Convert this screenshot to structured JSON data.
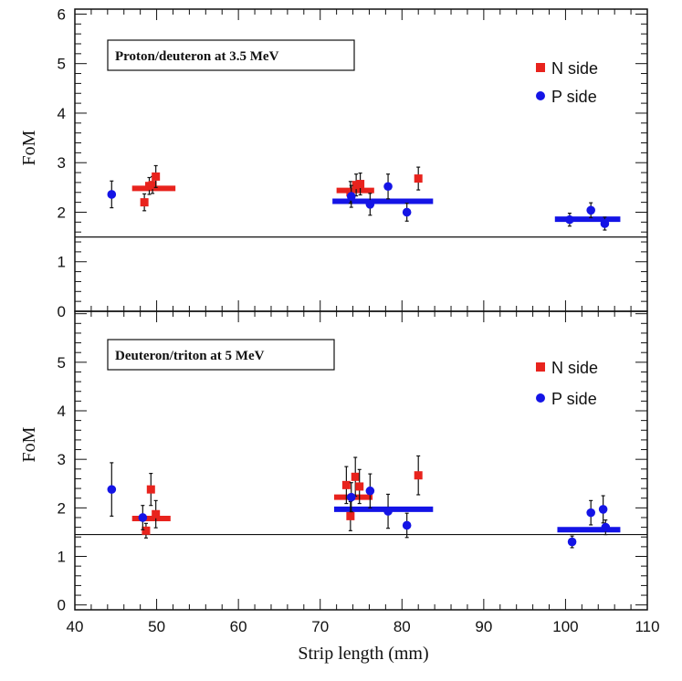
{
  "figure": {
    "xlabel": "Strip length (mm)",
    "shared_x_ticks": [
      "40",
      "50",
      "60",
      "70",
      "80",
      "90",
      "100",
      "110"
    ]
  },
  "chart_data": [
    {
      "type": "scatter",
      "title": "Proton/deuteron at 3.5 MeV",
      "xlabel": "Strip length (mm)",
      "ylabel": "FoM",
      "xlim": [
        40,
        110
      ],
      "ylim": [
        0,
        6.1
      ],
      "x_ticks": [
        40,
        50,
        60,
        70,
        80,
        90,
        100,
        110
      ],
      "y_ticks": [
        0,
        1,
        2,
        3,
        4,
        5,
        6
      ],
      "y_tick_labels": [
        "0",
        "1",
        "2",
        "3",
        "4",
        "5",
        "6"
      ],
      "reference_line": 1.5,
      "legend": {
        "placement": "top-right",
        "entries": [
          "N side",
          "P side"
        ]
      },
      "series": [
        {
          "name": "N side",
          "color": "#e8231d",
          "marker": "square",
          "points": [
            {
              "x": 48.5,
              "y": 2.2,
              "err": 0.17
            },
            {
              "x": 49.1,
              "y": 2.53,
              "err": 0.17
            },
            {
              "x": 49.5,
              "y": 2.55,
              "err": 0.17
            },
            {
              "x": 49.9,
              "y": 2.72,
              "err": 0.22
            },
            {
              "x": 73.7,
              "y": 2.4,
              "err": 0.22
            },
            {
              "x": 74.4,
              "y": 2.55,
              "err": 0.22
            },
            {
              "x": 74.9,
              "y": 2.57,
              "err": 0.22
            },
            {
              "x": 82.0,
              "y": 2.68,
              "err": 0.23
            }
          ],
          "averages": [
            {
              "x_from": 47.0,
              "x_to": 52.3,
              "y": 2.48
            },
            {
              "x_from": 72.0,
              "x_to": 76.6,
              "y": 2.44
            }
          ]
        },
        {
          "name": "P side",
          "color": "#1414e6",
          "marker": "circle",
          "points": [
            {
              "x": 44.5,
              "y": 2.36,
              "err": 0.27
            },
            {
              "x": 73.8,
              "y": 2.32,
              "err": 0.22
            },
            {
              "x": 76.1,
              "y": 2.16,
              "err": 0.22
            },
            {
              "x": 78.3,
              "y": 2.52,
              "err": 0.25
            },
            {
              "x": 80.6,
              "y": 2.0,
              "err": 0.18
            },
            {
              "x": 100.5,
              "y": 1.85,
              "err": 0.13
            },
            {
              "x": 103.1,
              "y": 2.04,
              "err": 0.15
            },
            {
              "x": 104.8,
              "y": 1.77,
              "err": 0.13
            }
          ],
          "averages": [
            {
              "x_from": 71.5,
              "x_to": 83.8,
              "y": 2.22
            },
            {
              "x_from": 98.7,
              "x_to": 106.7,
              "y": 1.86
            }
          ]
        }
      ]
    },
    {
      "type": "scatter",
      "title": "Deuteron/triton at 5 MeV",
      "xlabel": "Strip length (mm)",
      "ylabel": "FoM",
      "xlim": [
        40,
        110
      ],
      "ylim": [
        -0.1,
        6.05
      ],
      "x_ticks": [
        40,
        50,
        60,
        70,
        80,
        90,
        100,
        110
      ],
      "x_tick_labels": [
        "40",
        "50",
        "60",
        "70",
        "80",
        "90",
        "100",
        "110"
      ],
      "y_ticks": [
        0,
        1,
        2,
        3,
        4,
        5
      ],
      "y_tick_labels": [
        "0",
        "1",
        "2",
        "3",
        "4",
        "5"
      ],
      "reference_line": 1.45,
      "legend": {
        "placement": "top-right",
        "entries": [
          "N side",
          "P side"
        ]
      },
      "series": [
        {
          "name": "N side",
          "color": "#e8231d",
          "marker": "square",
          "points": [
            {
              "x": 48.7,
              "y": 1.53,
              "err": 0.15
            },
            {
              "x": 49.3,
              "y": 2.38,
              "err": 0.33
            },
            {
              "x": 49.9,
              "y": 1.87,
              "err": 0.28
            },
            {
              "x": 73.7,
              "y": 1.83,
              "err": 0.3
            },
            {
              "x": 73.2,
              "y": 2.47,
              "err": 0.38
            },
            {
              "x": 74.3,
              "y": 2.64,
              "err": 0.4
            },
            {
              "x": 74.8,
              "y": 2.44,
              "err": 0.35
            },
            {
              "x": 82.0,
              "y": 2.67,
              "err": 0.4
            }
          ],
          "averages": [
            {
              "x_from": 47.0,
              "x_to": 51.7,
              "y": 1.78
            },
            {
              "x_from": 71.7,
              "x_to": 76.4,
              "y": 2.22
            }
          ]
        },
        {
          "name": "P side",
          "color": "#1414e6",
          "marker": "circle",
          "points": [
            {
              "x": 44.5,
              "y": 2.38,
              "err": 0.55
            },
            {
              "x": 48.3,
              "y": 1.8,
              "err": 0.25
            },
            {
              "x": 73.8,
              "y": 2.22,
              "err": 0.3
            },
            {
              "x": 76.1,
              "y": 2.35,
              "err": 0.35
            },
            {
              "x": 78.3,
              "y": 1.93,
              "err": 0.35
            },
            {
              "x": 80.6,
              "y": 1.64,
              "err": 0.25
            },
            {
              "x": 100.8,
              "y": 1.3,
              "err": 0.12
            },
            {
              "x": 103.1,
              "y": 1.9,
              "err": 0.25
            },
            {
              "x": 104.6,
              "y": 1.97,
              "err": 0.28
            },
            {
              "x": 104.9,
              "y": 1.6,
              "err": 0.15
            }
          ],
          "averages": [
            {
              "x_from": 71.7,
              "x_to": 83.8,
              "y": 1.97
            },
            {
              "x_from": 99.0,
              "x_to": 106.7,
              "y": 1.55
            }
          ]
        }
      ]
    }
  ]
}
